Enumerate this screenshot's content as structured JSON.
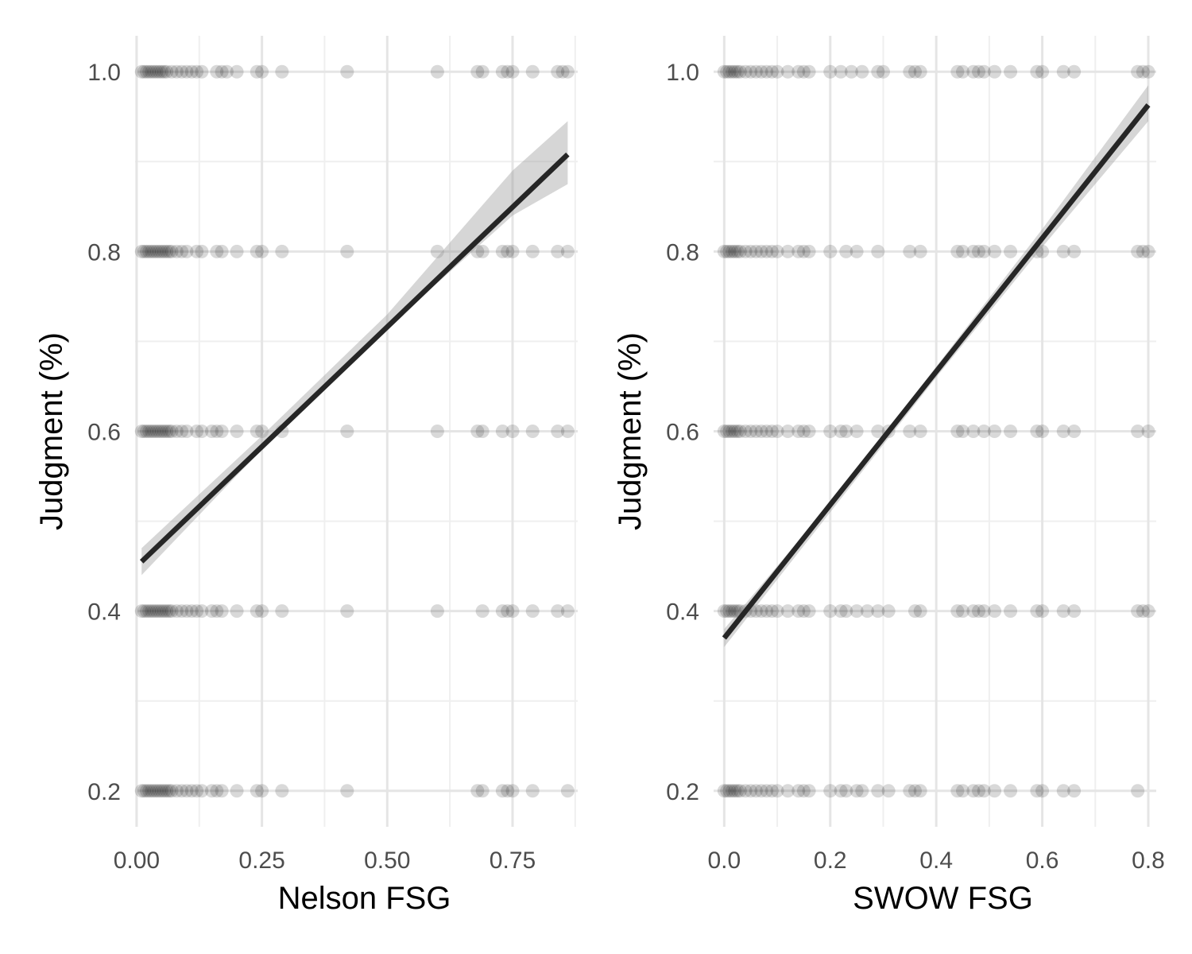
{
  "chart_data": [
    {
      "type": "scatter",
      "title": "",
      "xlabel": "Nelson FSG",
      "ylabel": "Judgment (%)",
      "xlim": [
        -0.003,
        0.88
      ],
      "ylim": [
        0.16,
        1.04
      ],
      "xticks": [
        0.0,
        0.25,
        0.5,
        0.75
      ],
      "xtick_labels": [
        "0.00",
        "0.25",
        "0.50",
        "0.75"
      ],
      "xticks_minor": [
        0.125,
        0.375,
        0.625,
        0.875
      ],
      "yticks": [
        0.2,
        0.4,
        0.6,
        0.8,
        1.0
      ],
      "ytick_labels": [
        "0.2",
        "0.4",
        "0.6",
        "0.8",
        "1.0"
      ],
      "yticks_minor": [
        0.3,
        0.5,
        0.7,
        0.9
      ],
      "grid": true,
      "point_color": "#000000",
      "point_alpha": 0.15,
      "fit_line_color": "#262626",
      "ci_band_color": "#999999",
      "fit_line": {
        "x": [
          0.01,
          0.86
        ],
        "y": [
          0.455,
          0.908
        ]
      },
      "ci_band": {
        "x": [
          0.01,
          0.25,
          0.5,
          0.75,
          0.86
        ],
        "lower": [
          0.44,
          0.58,
          0.715,
          0.84,
          0.875
        ],
        "upper": [
          0.47,
          0.595,
          0.73,
          0.89,
          0.945
        ]
      },
      "series": [
        {
          "y": 1.0,
          "x": [
            0.01,
            0.015,
            0.02,
            0.025,
            0.03,
            0.035,
            0.04,
            0.045,
            0.05,
            0.055,
            0.06,
            0.07,
            0.08,
            0.09,
            0.1,
            0.11,
            0.12,
            0.13,
            0.16,
            0.17,
            0.18,
            0.2,
            0.24,
            0.25,
            0.29,
            0.42,
            0.6,
            0.68,
            0.69,
            0.73,
            0.74,
            0.75,
            0.79,
            0.84,
            0.85,
            0.86
          ]
        },
        {
          "y": 0.8,
          "x": [
            0.01,
            0.015,
            0.02,
            0.025,
            0.03,
            0.035,
            0.04,
            0.045,
            0.05,
            0.055,
            0.06,
            0.065,
            0.07,
            0.08,
            0.09,
            0.1,
            0.12,
            0.13,
            0.16,
            0.17,
            0.2,
            0.24,
            0.25,
            0.29,
            0.42,
            0.6,
            0.68,
            0.69,
            0.73,
            0.74,
            0.75,
            0.79,
            0.84,
            0.86
          ]
        },
        {
          "y": 0.6,
          "x": [
            0.01,
            0.015,
            0.02,
            0.025,
            0.03,
            0.035,
            0.04,
            0.045,
            0.05,
            0.055,
            0.06,
            0.065,
            0.07,
            0.08,
            0.09,
            0.1,
            0.12,
            0.13,
            0.15,
            0.16,
            0.17,
            0.2,
            0.24,
            0.25,
            0.29,
            0.42,
            0.6,
            0.68,
            0.69,
            0.73,
            0.75,
            0.79,
            0.84,
            0.86
          ]
        },
        {
          "y": 0.4,
          "x": [
            0.01,
            0.015,
            0.02,
            0.025,
            0.03,
            0.035,
            0.04,
            0.045,
            0.05,
            0.055,
            0.06,
            0.065,
            0.07,
            0.08,
            0.09,
            0.1,
            0.11,
            0.12,
            0.13,
            0.15,
            0.16,
            0.17,
            0.2,
            0.24,
            0.25,
            0.29,
            0.42,
            0.6,
            0.69,
            0.73,
            0.74,
            0.75,
            0.79,
            0.84,
            0.86
          ]
        },
        {
          "y": 0.2,
          "x": [
            0.01,
            0.015,
            0.02,
            0.025,
            0.03,
            0.035,
            0.04,
            0.045,
            0.05,
            0.055,
            0.06,
            0.065,
            0.07,
            0.08,
            0.09,
            0.1,
            0.11,
            0.12,
            0.13,
            0.15,
            0.16,
            0.17,
            0.2,
            0.24,
            0.25,
            0.29,
            0.42,
            0.68,
            0.69,
            0.73,
            0.74,
            0.75,
            0.79,
            0.86
          ]
        }
      ]
    },
    {
      "type": "scatter",
      "title": "",
      "xlabel": "SWOW FSG",
      "ylabel": "Judgment (%)",
      "xlim": [
        -0.02,
        0.815
      ],
      "ylim": [
        0.16,
        1.04
      ],
      "xticks": [
        0.0,
        0.2,
        0.4,
        0.6,
        0.8
      ],
      "xtick_labels": [
        "0.0",
        "0.2",
        "0.4",
        "0.6",
        "0.8"
      ],
      "xticks_minor": [
        0.1,
        0.3,
        0.5,
        0.7
      ],
      "yticks": [
        0.2,
        0.4,
        0.6,
        0.8,
        1.0
      ],
      "ytick_labels": [
        "0.2",
        "0.4",
        "0.6",
        "0.8",
        "1.0"
      ],
      "yticks_minor": [
        0.3,
        0.5,
        0.7,
        0.9
      ],
      "grid": true,
      "point_color": "#000000",
      "point_alpha": 0.15,
      "fit_line_color": "#262626",
      "ci_band_color": "#999999",
      "fit_line": {
        "x": [
          0.0,
          0.8
        ],
        "y": [
          0.37,
          0.963
        ]
      },
      "ci_band": {
        "x": [
          0.0,
          0.2,
          0.4,
          0.6,
          0.8
        ],
        "lower": [
          0.36,
          0.51,
          0.66,
          0.805,
          0.945
        ],
        "upper": [
          0.38,
          0.52,
          0.672,
          0.825,
          0.985
        ]
      },
      "series": [
        {
          "y": 1.0,
          "x": [
            0.0,
            0.005,
            0.01,
            0.015,
            0.02,
            0.025,
            0.03,
            0.04,
            0.05,
            0.06,
            0.07,
            0.08,
            0.09,
            0.1,
            0.12,
            0.14,
            0.15,
            0.16,
            0.2,
            0.22,
            0.24,
            0.26,
            0.29,
            0.3,
            0.35,
            0.36,
            0.37,
            0.44,
            0.45,
            0.47,
            0.48,
            0.49,
            0.51,
            0.54,
            0.59,
            0.6,
            0.64,
            0.66,
            0.78,
            0.79,
            0.8
          ]
        },
        {
          "y": 0.8,
          "x": [
            0.0,
            0.005,
            0.01,
            0.015,
            0.02,
            0.025,
            0.03,
            0.04,
            0.05,
            0.06,
            0.07,
            0.08,
            0.09,
            0.1,
            0.12,
            0.14,
            0.15,
            0.16,
            0.2,
            0.23,
            0.25,
            0.29,
            0.35,
            0.37,
            0.44,
            0.45,
            0.47,
            0.48,
            0.49,
            0.51,
            0.54,
            0.59,
            0.6,
            0.64,
            0.66,
            0.78,
            0.79,
            0.8
          ]
        },
        {
          "y": 0.6,
          "x": [
            0.0,
            0.005,
            0.01,
            0.015,
            0.02,
            0.025,
            0.03,
            0.04,
            0.05,
            0.06,
            0.07,
            0.08,
            0.09,
            0.1,
            0.12,
            0.14,
            0.15,
            0.16,
            0.2,
            0.22,
            0.23,
            0.25,
            0.29,
            0.31,
            0.35,
            0.37,
            0.44,
            0.45,
            0.47,
            0.49,
            0.51,
            0.54,
            0.59,
            0.6,
            0.64,
            0.66,
            0.78,
            0.8
          ]
        },
        {
          "y": 0.4,
          "x": [
            0.0,
            0.005,
            0.01,
            0.015,
            0.02,
            0.025,
            0.03,
            0.04,
            0.05,
            0.06,
            0.07,
            0.08,
            0.09,
            0.1,
            0.12,
            0.14,
            0.15,
            0.16,
            0.2,
            0.22,
            0.23,
            0.25,
            0.27,
            0.29,
            0.31,
            0.36,
            0.37,
            0.44,
            0.45,
            0.47,
            0.48,
            0.49,
            0.51,
            0.54,
            0.59,
            0.6,
            0.64,
            0.66,
            0.78,
            0.79,
            0.8
          ]
        },
        {
          "y": 0.2,
          "x": [
            0.0,
            0.005,
            0.01,
            0.015,
            0.02,
            0.025,
            0.03,
            0.04,
            0.05,
            0.06,
            0.07,
            0.08,
            0.09,
            0.1,
            0.12,
            0.14,
            0.15,
            0.16,
            0.2,
            0.22,
            0.23,
            0.25,
            0.26,
            0.29,
            0.31,
            0.35,
            0.36,
            0.37,
            0.44,
            0.45,
            0.47,
            0.48,
            0.49,
            0.51,
            0.54,
            0.59,
            0.6,
            0.64,
            0.66,
            0.78
          ]
        }
      ]
    }
  ]
}
